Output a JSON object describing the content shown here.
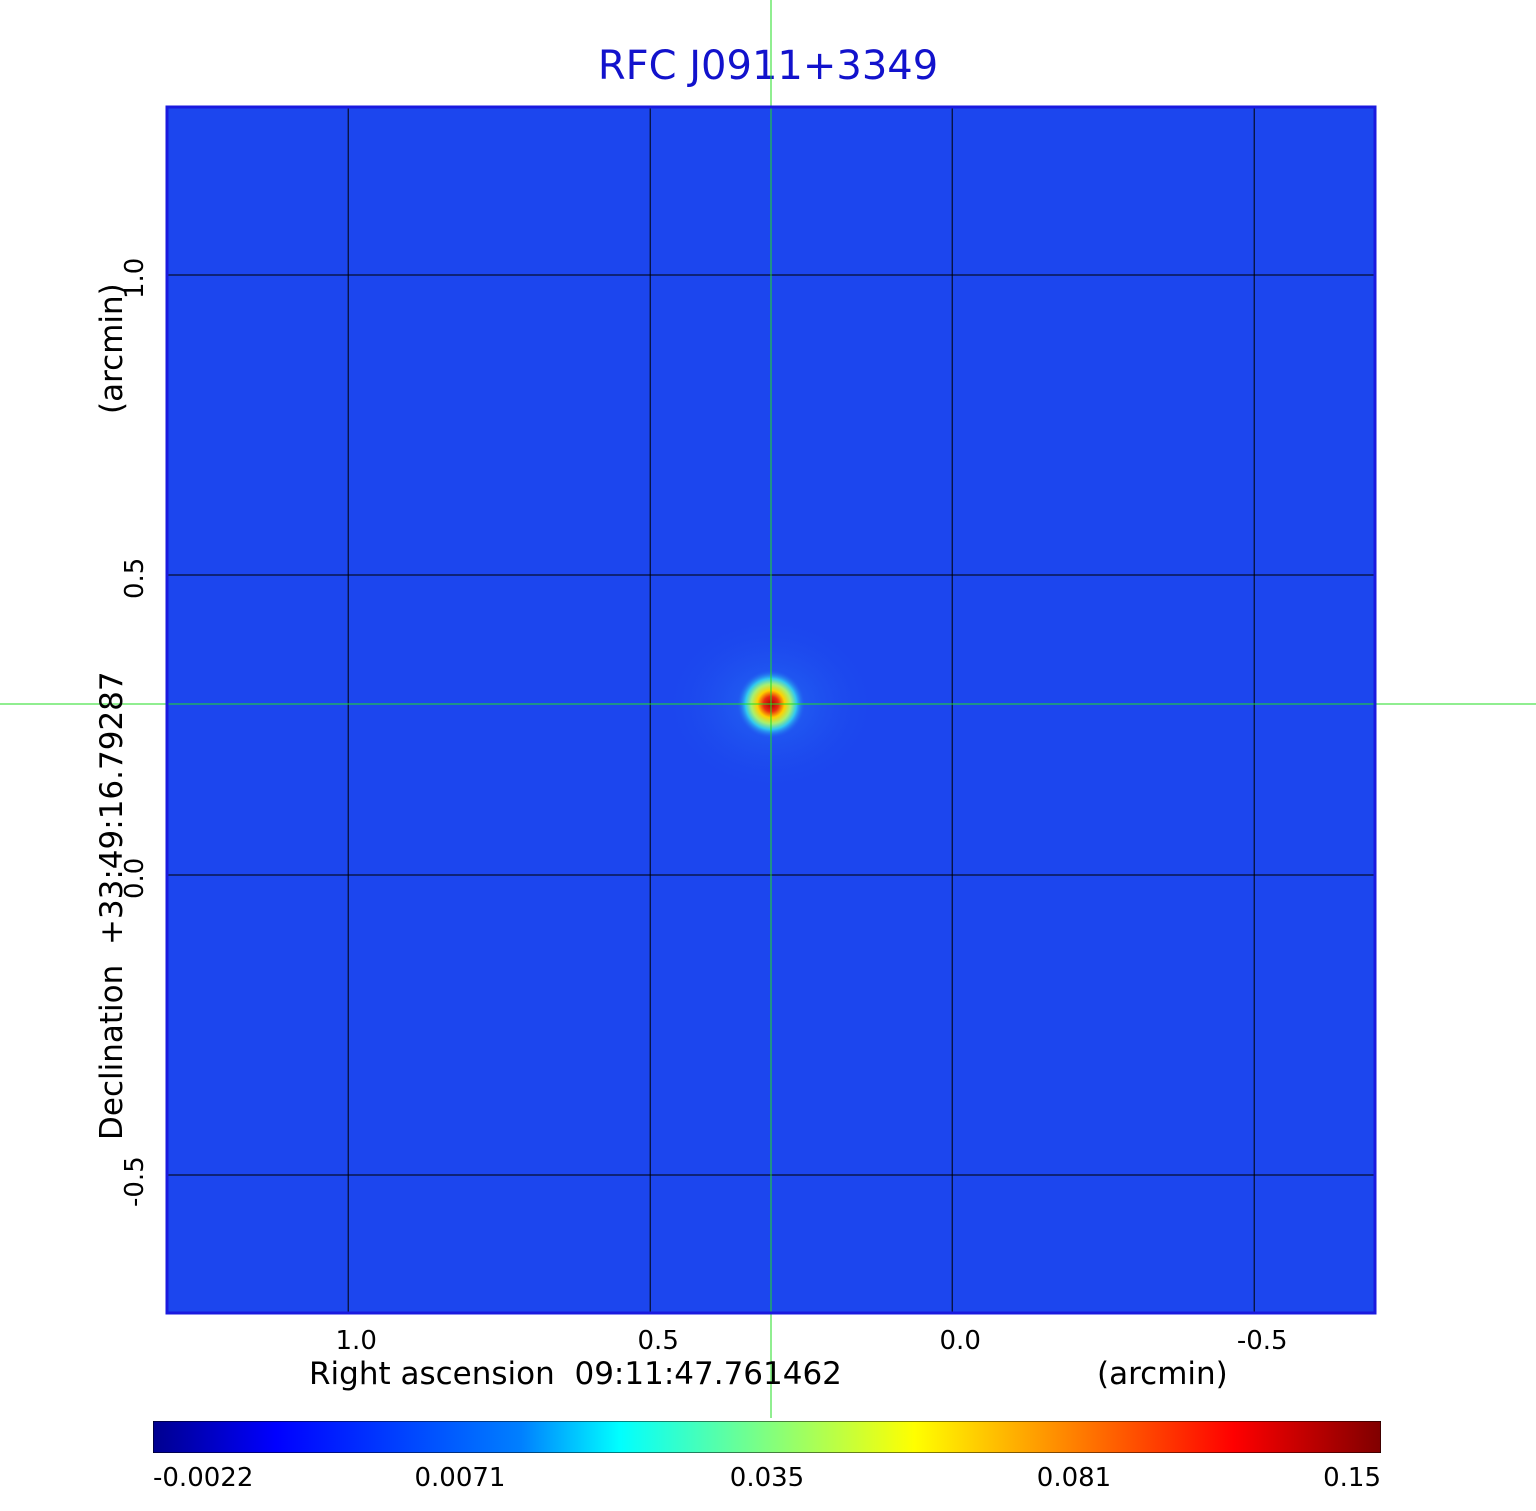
{
  "chart_data": {
    "type": "heatmap",
    "title": "RFC J0911+3349",
    "xlabel": "Right ascension  09:11:47.761462",
    "xunit": "(arcmin)",
    "ylabel": "Declination  +33:49:16.79287",
    "yunit": "(arcmin)",
    "xlim": [
      1.3,
      -0.7
    ],
    "ylim": [
      -0.73,
      1.28
    ],
    "x_ticks": [
      1.0,
      0.5,
      0.0,
      -0.5
    ],
    "x_tick_labels": [
      "1.0",
      "0.5",
      "0.0",
      "-0.5"
    ],
    "y_ticks": [
      1.0,
      0.5,
      0.0,
      -0.5
    ],
    "y_tick_labels": [
      "1.0",
      "0.5",
      "0.0",
      "-0.5"
    ],
    "grid": true,
    "crosshair": {
      "x": 0.3,
      "y": 0.285,
      "color": "#22dd22"
    },
    "peak": {
      "x": 0.3,
      "y": 0.285,
      "value": 0.15
    },
    "colormap": "jet",
    "colorbar": {
      "ticks": [
        "-0.0022",
        "0.0071",
        "0.035",
        "0.081",
        "0.15"
      ],
      "placement": "bottom"
    },
    "colors": {
      "title": "#1212cc",
      "frame": "#1a1adf",
      "background_field": "#1c46ee",
      "grid": "#000000"
    }
  }
}
